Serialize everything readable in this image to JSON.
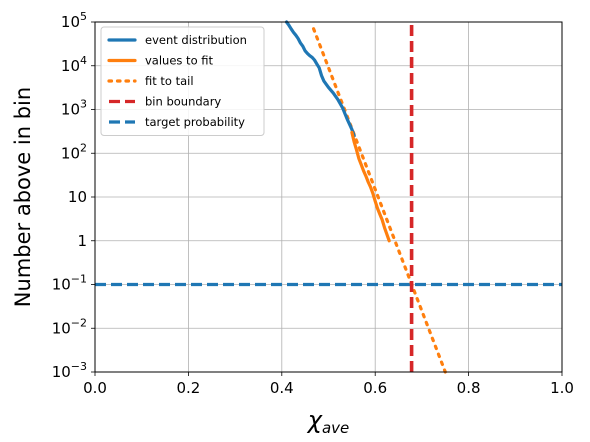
{
  "chart_data": {
    "type": "line",
    "xlabel": "χ_ave",
    "ylabel": "Number above in bin",
    "xlim": [
      0.0,
      1.0
    ],
    "ylim": [
      0.001,
      100000
    ],
    "yscale": "log",
    "grid": true,
    "legend_position": "top-left",
    "x_ticks": [
      "0.0",
      "0.2",
      "0.4",
      "0.6",
      "0.8",
      "1.0"
    ],
    "y_ticks": [
      {
        "value": 0.001,
        "base": "10",
        "exp": "−3"
      },
      {
        "value": 0.01,
        "base": "10",
        "exp": "−2"
      },
      {
        "value": 0.1,
        "base": "10",
        "exp": "−1"
      },
      {
        "value": 1,
        "base": "1",
        "exp": ""
      },
      {
        "value": 10,
        "base": "10",
        "exp": ""
      },
      {
        "value": 100,
        "base": "10",
        "exp": "2"
      },
      {
        "value": 1000,
        "base": "10",
        "exp": "3"
      },
      {
        "value": 10000,
        "base": "10",
        "exp": "4"
      },
      {
        "value": 100000,
        "base": "10",
        "exp": "5"
      }
    ],
    "series": [
      {
        "name": "event distribution",
        "style": "solid",
        "color": "#1f77b4",
        "x": [
          0.41,
          0.415,
          0.42,
          0.425,
          0.43,
          0.435,
          0.44,
          0.445,
          0.45,
          0.455,
          0.46,
          0.465,
          0.47,
          0.475,
          0.48,
          0.485,
          0.49,
          0.5,
          0.51,
          0.52,
          0.53,
          0.54,
          0.55,
          0.555
        ],
        "y": [
          100000,
          85000,
          70000,
          58000,
          50000,
          42000,
          33000,
          28000,
          22000,
          19000,
          17000,
          15500,
          13500,
          11000,
          9000,
          6000,
          4500,
          3200,
          2400,
          1700,
          1100,
          600,
          350,
          250
        ]
      },
      {
        "name": "values to fit",
        "style": "solid",
        "color": "#ff7f0e",
        "x": [
          0.55,
          0.555,
          0.56,
          0.565,
          0.57,
          0.575,
          0.58,
          0.585,
          0.59,
          0.595,
          0.6,
          0.605,
          0.61,
          0.615,
          0.62,
          0.625,
          0.63
        ],
        "y": [
          300,
          180,
          120,
          75,
          55,
          40,
          30,
          22,
          17,
          12,
          8,
          5.5,
          4,
          3,
          2,
          1.4,
          1
        ]
      },
      {
        "name": "fit to tail",
        "style": "dotted",
        "color": "#ff7f0e",
        "x": [
          0.468,
          0.75
        ],
        "y": [
          70000,
          0.001
        ]
      },
      {
        "name": "bin boundary",
        "style": "dashed",
        "color": "#d62728",
        "x": [
          0.678,
          0.678
        ],
        "y": [
          0.001,
          100000
        ]
      },
      {
        "name": "target probability",
        "style": "dashed",
        "color": "#1f77b4",
        "x": [
          0.0,
          1.0
        ],
        "y": [
          0.1,
          0.1
        ]
      }
    ]
  }
}
